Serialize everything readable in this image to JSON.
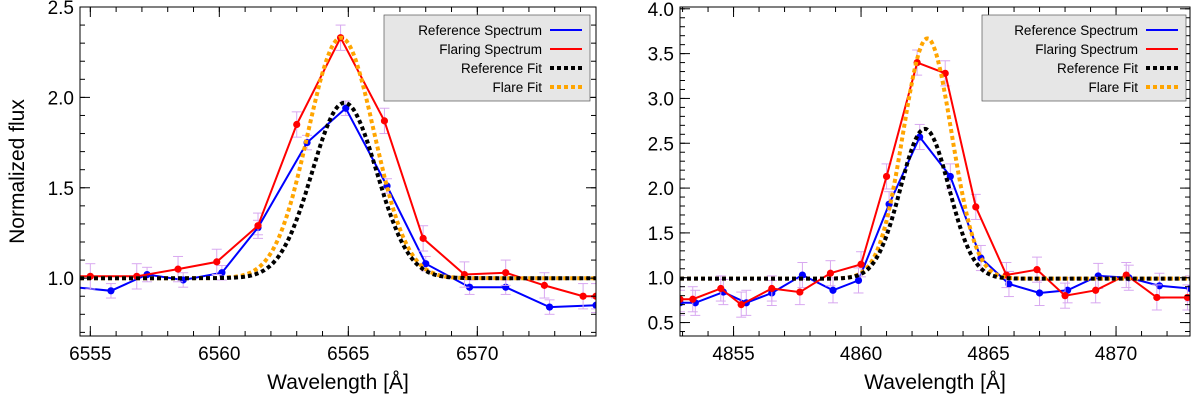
{
  "figure": {
    "colors": {
      "reference": "#0000ff",
      "flare": "#ff0000",
      "reference_fit": "#000000",
      "flare_fit": "#ffa500",
      "errorbar": "#d8a8f0",
      "legend_bg": "#e6e6e6"
    }
  },
  "chart_data": [
    {
      "type": "line",
      "title": "",
      "xlabel": "Wavelength [Å]",
      "ylabel": "Normalized flux",
      "xlim": [
        6554.6,
        6574.6
      ],
      "ylim": [
        0.68,
        2.5
      ],
      "xticks": [
        6555,
        6560,
        6565,
        6570
      ],
      "yticks": [
        1.0,
        1.5,
        2.0,
        2.5
      ],
      "xtick_labels": [
        "6555",
        "6560",
        "6565",
        "6570"
      ],
      "ytick_labels": [
        "1.0",
        "1.5",
        "2.0",
        "2.5"
      ],
      "legend": [
        "Reference Spectrum",
        "Flaring Spectrum",
        "Reference Fit",
        "Flare Fit"
      ],
      "legend_position": "top-right",
      "series": [
        {
          "name": "Reference Spectrum",
          "kind": "spectrum",
          "x": [
            6554.4,
            6555.8,
            6557.2,
            6558.6,
            6560.1,
            6561.5,
            6563.4,
            6564.9,
            6566.5,
            6568.0,
            6569.7,
            6571.1,
            6572.8,
            6574.6
          ],
          "y": [
            0.95,
            0.93,
            1.02,
            0.99,
            1.03,
            1.28,
            1.75,
            1.94,
            1.51,
            1.08,
            0.95,
            0.95,
            0.84,
            0.85
          ],
          "err": 0.04
        },
        {
          "name": "Flaring Spectrum",
          "kind": "spectrum",
          "x": [
            6554.4,
            6555.0,
            6556.8,
            6558.4,
            6559.9,
            6561.5,
            6563.0,
            6564.7,
            6566.4,
            6567.9,
            6569.5,
            6571.1,
            6572.6,
            6574.1,
            6574.6
          ],
          "y": [
            1.01,
            1.01,
            1.01,
            1.05,
            1.09,
            1.29,
            1.85,
            2.33,
            1.87,
            1.22,
            1.02,
            1.03,
            0.96,
            0.9,
            0.9
          ],
          "err": 0.07
        },
        {
          "name": "Reference Fit",
          "kind": "gaussian",
          "baseline": 1.0,
          "amplitude": 0.97,
          "center": 6564.85,
          "sigma": 1.25
        },
        {
          "name": "Flare Fit",
          "kind": "gaussian",
          "baseline": 1.0,
          "amplitude": 1.33,
          "center": 6564.72,
          "sigma": 1.28
        }
      ]
    },
    {
      "type": "line",
      "title": "",
      "xlabel": "Wavelength [Å]",
      "ylabel": "",
      "xlim": [
        4852.9,
        4872.9
      ],
      "ylim": [
        0.35,
        4.02
      ],
      "xticks": [
        4855,
        4860,
        4865,
        4870
      ],
      "yticks": [
        0.5,
        1.0,
        1.5,
        2.0,
        2.5,
        3.0,
        3.5,
        4.0
      ],
      "xtick_labels": [
        "4855",
        "4860",
        "4865",
        "4870"
      ],
      "ytick_labels": [
        "0.5",
        "1.0",
        "1.5",
        "2.0",
        "2.5",
        "3.0",
        "3.5",
        "4.0"
      ],
      "legend": [
        "Reference Spectrum",
        "Flaring Spectrum",
        "Reference Fit",
        "Flare Fit"
      ],
      "legend_position": "top-right",
      "series": [
        {
          "name": "Reference Spectrum",
          "kind": "spectrum",
          "x": [
            4852.9,
            4853.5,
            4854.6,
            4855.5,
            4856.5,
            4857.7,
            4858.9,
            4859.9,
            4861.1,
            4862.3,
            4863.5,
            4864.7,
            4865.8,
            4867.0,
            4868.1,
            4869.3,
            4870.5,
            4871.7,
            4872.9
          ],
          "y": [
            0.72,
            0.72,
            0.84,
            0.72,
            0.83,
            1.03,
            0.86,
            0.97,
            1.82,
            2.57,
            2.13,
            1.22,
            0.93,
            0.83,
            0.86,
            1.02,
            1.0,
            0.91,
            0.88
          ],
          "err": 0.14
        },
        {
          "name": "Flaring Spectrum",
          "kind": "spectrum",
          "x": [
            4852.9,
            4853.4,
            4854.5,
            4855.3,
            4856.5,
            4857.6,
            4858.8,
            4860.0,
            4861.0,
            4862.2,
            4863.3,
            4864.5,
            4865.7,
            4866.9,
            4868.0,
            4869.2,
            4870.4,
            4871.6,
            4872.8
          ],
          "y": [
            0.76,
            0.76,
            0.88,
            0.7,
            0.88,
            0.84,
            1.05,
            1.15,
            2.13,
            3.4,
            3.28,
            1.79,
            1.03,
            1.09,
            0.8,
            0.86,
            1.03,
            0.78,
            0.78
          ],
          "err": 0.14
        },
        {
          "name": "Reference Fit",
          "kind": "gaussian",
          "baseline": 0.99,
          "amplitude": 1.67,
          "center": 4862.5,
          "sigma": 0.95
        },
        {
          "name": "Flare Fit",
          "kind": "gaussian",
          "baseline": 0.99,
          "amplitude": 2.68,
          "center": 4862.6,
          "sigma": 0.95
        }
      ]
    }
  ]
}
